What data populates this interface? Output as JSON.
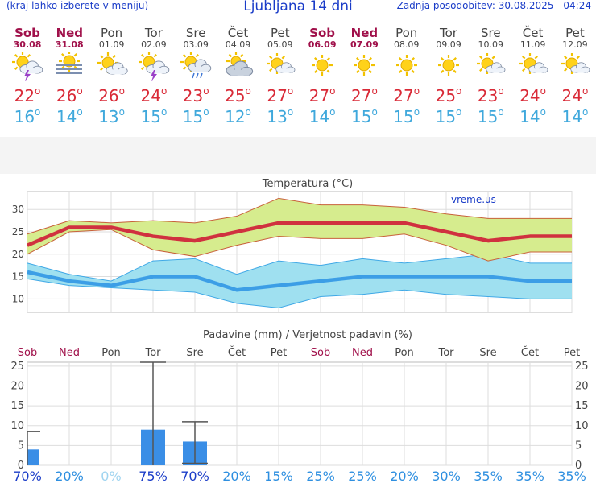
{
  "header": {
    "left_note": "(kraj lahko izberete v meniju)",
    "title": "Ljubljana 14 dni",
    "updated": "Zadnja posodobitev: 30.08.2025 - 04:24"
  },
  "days": [
    {
      "name": "Sob",
      "date": "30.08",
      "weekend": true,
      "icon": "sun-cloud-lightning-icon",
      "tmax": "22",
      "tmin": "16"
    },
    {
      "name": "Ned",
      "date": "31.08",
      "weekend": true,
      "icon": "sun-fog-icon",
      "tmax": "26",
      "tmin": "14"
    },
    {
      "name": "Pon",
      "date": "01.09",
      "weekend": false,
      "icon": "sun-cloud-icon",
      "tmax": "26",
      "tmin": "13"
    },
    {
      "name": "Tor",
      "date": "02.09",
      "weekend": false,
      "icon": "sun-cloud-lightning-icon",
      "tmax": "24",
      "tmin": "15"
    },
    {
      "name": "Sre",
      "date": "03.09",
      "weekend": false,
      "icon": "sun-rain-cloud-icon",
      "tmax": "23",
      "tmin": "15"
    },
    {
      "name": "Čet",
      "date": "04.09",
      "weekend": false,
      "icon": "sun-behind-cloud-icon",
      "tmax": "25",
      "tmin": "12"
    },
    {
      "name": "Pet",
      "date": "05.09",
      "weekend": false,
      "icon": "sun-small-cloud-icon",
      "tmax": "27",
      "tmin": "13"
    },
    {
      "name": "Sob",
      "date": "06.09",
      "weekend": true,
      "icon": "sun-icon",
      "tmax": "27",
      "tmin": "14"
    },
    {
      "name": "Ned",
      "date": "07.09",
      "weekend": true,
      "icon": "sun-icon",
      "tmax": "27",
      "tmin": "15"
    },
    {
      "name": "Pon",
      "date": "08.09",
      "weekend": false,
      "icon": "sun-icon",
      "tmax": "27",
      "tmin": "15"
    },
    {
      "name": "Tor",
      "date": "09.09",
      "weekend": false,
      "icon": "sun-icon",
      "tmax": "25",
      "tmin": "15"
    },
    {
      "name": "Sre",
      "date": "10.09",
      "weekend": false,
      "icon": "sun-small-cloud-icon",
      "tmax": "23",
      "tmin": "15"
    },
    {
      "name": "Čet",
      "date": "11.09",
      "weekend": false,
      "icon": "sun-small-cloud-icon",
      "tmax": "24",
      "tmin": "14"
    },
    {
      "name": "Pet",
      "date": "12.09",
      "weekend": false,
      "icon": "sun-small-cloud-icon",
      "tmax": "24",
      "tmin": "14"
    }
  ],
  "colors": {
    "weekend": "#a0104a",
    "weekday": "#444444",
    "tmax": "#d92a37",
    "tmin": "#3fa8dc",
    "band_max": "#d6ec8e",
    "band_min": "#9fe0f0",
    "precip_bar": "#3a8ee6",
    "prob_text": "#2e8fe0"
  },
  "chart_data": [
    {
      "type": "line",
      "title": "Temperatura (°C)",
      "watermark": "vreme.us",
      "categories": [
        "30.08",
        "31.08",
        "01.09",
        "02.09",
        "03.09",
        "04.09",
        "05.09",
        "06.09",
        "07.09",
        "08.09",
        "09.09",
        "10.09",
        "11.09",
        "12.09"
      ],
      "ylim": [
        7,
        34
      ],
      "yticks": [
        10,
        15,
        20,
        25,
        30
      ],
      "grid": true,
      "series": [
        {
          "values": [
            22,
            26,
            26,
            24,
            23,
            25,
            27,
            27,
            27,
            27,
            25,
            23,
            24,
            24
          ]
        },
        {
          "values": [
            24.5,
            27.5,
            27,
            27.5,
            27,
            28.5,
            32.5,
            31,
            31,
            30.5,
            29,
            28,
            28,
            28
          ]
        },
        {
          "values": [
            20,
            25,
            25.5,
            21,
            19.5,
            22,
            24,
            23.5,
            23.5,
            24.5,
            22,
            18.5,
            20.5,
            20.5
          ]
        },
        {
          "values": [
            16,
            14,
            13,
            15,
            15,
            12,
            13,
            14,
            15,
            15,
            15,
            15,
            14,
            14
          ]
        },
        {
          "values": [
            18,
            15.5,
            14,
            18.5,
            19,
            15.5,
            18.5,
            17.5,
            19,
            18,
            19,
            20,
            18,
            18
          ]
        },
        {
          "values": [
            14.5,
            13,
            12.5,
            12,
            11.5,
            9,
            8,
            10.5,
            11,
            12,
            11,
            10.5,
            10,
            10
          ]
        }
      ]
    },
    {
      "type": "bar",
      "title": "Padavine (mm) / Verjetnost padavin (%)",
      "categories": [
        "Sob",
        "Ned",
        "Pon",
        "Tor",
        "Sre",
        "Čet",
        "Pet",
        "Sob",
        "Ned",
        "Pon",
        "Tor",
        "Sre",
        "Čet",
        "Pet"
      ],
      "ylim": [
        0,
        26
      ],
      "yticks": [
        0,
        5,
        10,
        15,
        20,
        25
      ],
      "values": [
        4,
        0,
        0,
        9,
        6,
        0,
        0,
        0,
        0,
        0,
        0,
        0,
        0,
        0
      ],
      "error_high": [
        8.5,
        0,
        0,
        26,
        11,
        0,
        0,
        0,
        0,
        0,
        0,
        0,
        0,
        0
      ],
      "error_low": [
        0,
        0,
        0,
        0,
        0.5,
        0,
        0,
        0,
        0,
        0,
        0,
        0,
        0,
        0
      ],
      "probability": [
        "70%",
        "20%",
        "0%",
        "75%",
        "70%",
        "20%",
        "15%",
        "25%",
        "25%",
        "20%",
        "30%",
        "35%",
        "35%",
        "35%"
      ],
      "probability_values": [
        70,
        20,
        0,
        75,
        70,
        20,
        15,
        25,
        25,
        20,
        30,
        35,
        35,
        35
      ]
    }
  ]
}
